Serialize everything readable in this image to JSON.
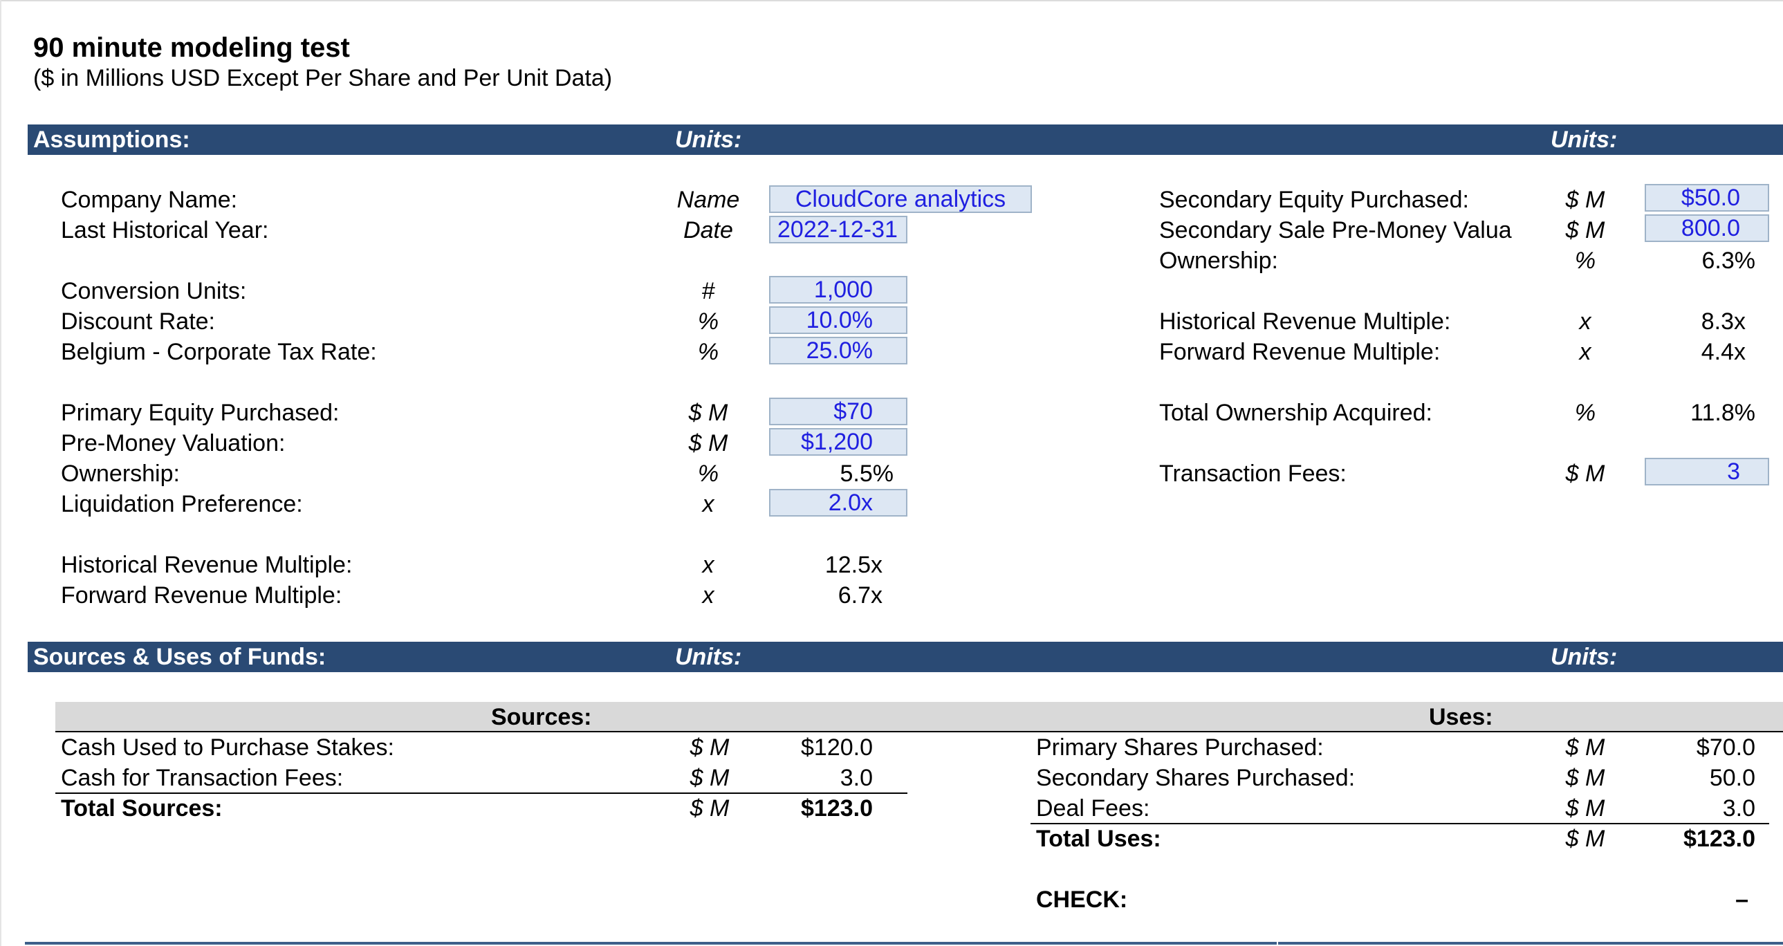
{
  "title": "90 minute modeling test",
  "subtitle": "($ in Millions USD Except Per Share and Per Unit Data)",
  "assumptions": {
    "header": "Assumptions:",
    "units_header": "Units:",
    "units_header_right": "Units:",
    "left": {
      "company_name": {
        "label": "Company Name:",
        "unit": "Name",
        "value": "CloudCore analytics"
      },
      "last_hist_year": {
        "label": "Last Historical Year:",
        "unit": "Date",
        "value": "2022-12-31"
      },
      "conversion_units": {
        "label": "Conversion Units:",
        "unit": "#",
        "value": "1,000"
      },
      "discount_rate": {
        "label": "Discount Rate:",
        "unit": "%",
        "value": "10.0%"
      },
      "tax_rate": {
        "label": "Belgium - Corporate Tax Rate:",
        "unit": "%",
        "value": "25.0%"
      },
      "primary_equity": {
        "label": "Primary Equity Purchased:",
        "unit": "$ M",
        "value": "$70"
      },
      "pre_money": {
        "label": "Pre-Money Valuation:",
        "unit": "$ M",
        "value": "$1,200"
      },
      "ownership": {
        "label": "Ownership:",
        "unit": "%",
        "value": "5.5%"
      },
      "liq_pref": {
        "label": "Liquidation Preference:",
        "unit": "x",
        "value": "2.0x"
      },
      "hist_rev_mult": {
        "label": "Historical Revenue Multiple:",
        "unit": "x",
        "value": "12.5x"
      },
      "fwd_rev_mult": {
        "label": "Forward Revenue Multiple:",
        "unit": "x",
        "value": "6.7x"
      }
    },
    "right": {
      "secondary_equity": {
        "label": "Secondary Equity Purchased:",
        "unit": "$ M",
        "value": "$50.0"
      },
      "secondary_pre_money": {
        "label": "Secondary Sale Pre-Money Valua",
        "unit": "$ M",
        "value": "800.0"
      },
      "ownership": {
        "label": "Ownership:",
        "unit": "%",
        "value": "6.3%"
      },
      "hist_rev_mult": {
        "label": "Historical Revenue Multiple:",
        "unit": "x",
        "value": "8.3x"
      },
      "fwd_rev_mult": {
        "label": "Forward Revenue Multiple:",
        "unit": "x",
        "value": "4.4x"
      },
      "total_ownership": {
        "label": "Total Ownership Acquired:",
        "unit": "%",
        "value": "11.8%"
      },
      "transaction_fees": {
        "label": "Transaction Fees:",
        "unit": "$ M",
        "value": "3"
      }
    }
  },
  "sources_uses": {
    "header": "Sources & Uses of Funds:",
    "units_header": "Units:",
    "units_header_right": "Units:",
    "sources": {
      "header": "Sources:",
      "rows": [
        {
          "label": "Cash Used to Purchase Stakes:",
          "unit": "$ M",
          "value": "$120.0"
        },
        {
          "label": "Cash for Transaction Fees:",
          "unit": "$ M",
          "value": "3.0"
        }
      ],
      "total": {
        "label": "Total Sources:",
        "unit": "$ M",
        "value": "$123.0"
      }
    },
    "uses": {
      "header": "Uses:",
      "rows": [
        {
          "label": "Primary Shares Purchased:",
          "unit": "$ M",
          "value": "$70.0"
        },
        {
          "label": "Secondary Shares Purchased:",
          "unit": "$ M",
          "value": "50.0"
        },
        {
          "label": "Deal Fees:",
          "unit": "$ M",
          "value": "3.0"
        }
      ],
      "total": {
        "label": "Total Uses:",
        "unit": "$ M",
        "value": "$123.0"
      }
    },
    "check": {
      "label": "CHECK:",
      "value": "–"
    }
  },
  "colors": {
    "band": "#2a4a74",
    "input_fill": "#dde7f3",
    "input_text": "#1f1fe0",
    "table_header": "#d9d9d9"
  }
}
